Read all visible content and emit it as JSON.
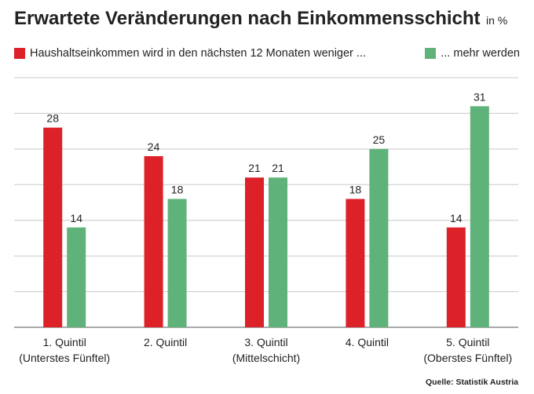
{
  "title": "Erwartete Veränderungen nach Einkommensschicht",
  "title_unit": "in %",
  "source": "Quelle: Statistik Austria",
  "colors": {
    "series_1": "#dc2128",
    "series_2": "#5fb27a",
    "grid": "#c8c8c8",
    "axis": "#555555"
  },
  "chart_data": {
    "type": "bar",
    "title": "Erwartete Veränderungen nach Einkommensschicht",
    "unit": "in %",
    "ylim": [
      0,
      35
    ],
    "grid": true,
    "gridlines": [
      5,
      10,
      15,
      20,
      25,
      30,
      35
    ],
    "legend_position": "top",
    "categories": [
      [
        "1. Quintil",
        "(Unterstes Fünftel)"
      ],
      [
        "2. Quintil",
        ""
      ],
      [
        "3. Quintil",
        "(Mittelschicht)"
      ],
      [
        "4. Quintil",
        ""
      ],
      [
        "5. Quintil",
        "(Oberstes Fünftel)"
      ]
    ],
    "series": [
      {
        "name": "Haushaltseinkommen wird in den nächsten 12 Monaten weniger ...",
        "values": [
          28,
          24,
          21,
          18,
          14
        ]
      },
      {
        "name": "... mehr werden",
        "values": [
          14,
          18,
          21,
          25,
          31
        ]
      }
    ]
  }
}
